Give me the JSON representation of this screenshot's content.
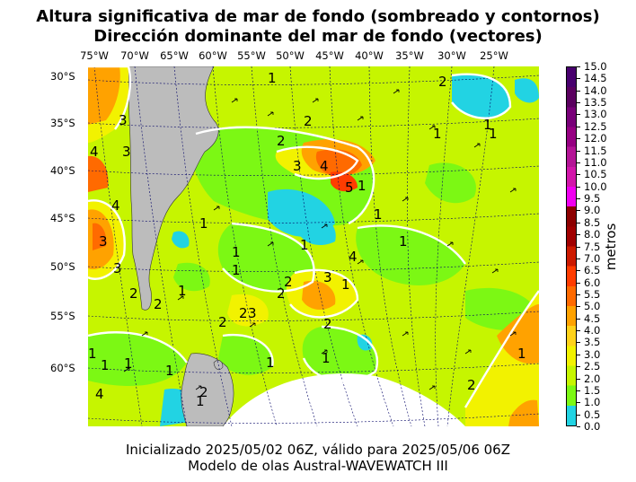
{
  "title_line1": "Altura significativa de mar de fondo (sombreado y contornos)",
  "title_line2": "Dirección dominante del mar de fondo (vectores)",
  "footer_line1": "Inicializado 2025/05/02 06Z, válido para 2025/05/06 06Z",
  "footer_line2": "Modelo de olas Austral-WAVEWATCH III",
  "lon_labels": [
    "75°W",
    "70°W",
    "65°W",
    "60°W",
    "55°W",
    "50°W",
    "45°W",
    "40°W",
    "35°W",
    "30°W",
    "25°W"
  ],
  "lat_labels": [
    "30°S",
    "35°S",
    "40°S",
    "45°S",
    "50°S",
    "55°S",
    "60°S"
  ],
  "colorbar": {
    "unit_label": "metros",
    "ticks": [
      "0.0",
      "0.5",
      "1.0",
      "1.5",
      "2.0",
      "2.5",
      "3.0",
      "3.5",
      "4.0",
      "4.5",
      "5.0",
      "5.5",
      "6.0",
      "6.5",
      "7.0",
      "7.5",
      "8.0",
      "8.5",
      "9.0",
      "9.5",
      "10.0",
      "10.5",
      "11.0",
      "11.5",
      "12.0",
      "12.5",
      "13.0",
      "13.5",
      "14.0",
      "14.5",
      "15.0"
    ],
    "colors": [
      "#22d3e3",
      "#7cf814",
      "#c6f500",
      "#f2f200",
      "#ffd21a",
      "#ffa200",
      "#ff6a00",
      "#ff3c00",
      "#cc1a00",
      "#a00000",
      "#8c0000",
      "#f000f0",
      "#d216aa",
      "#b41496",
      "#960082",
      "#780078",
      "#5a005f",
      "#48006e"
    ]
  },
  "contour_labels": [
    "1",
    "2",
    "3",
    "4",
    "5"
  ],
  "land_color": "#bcbcbc"
}
